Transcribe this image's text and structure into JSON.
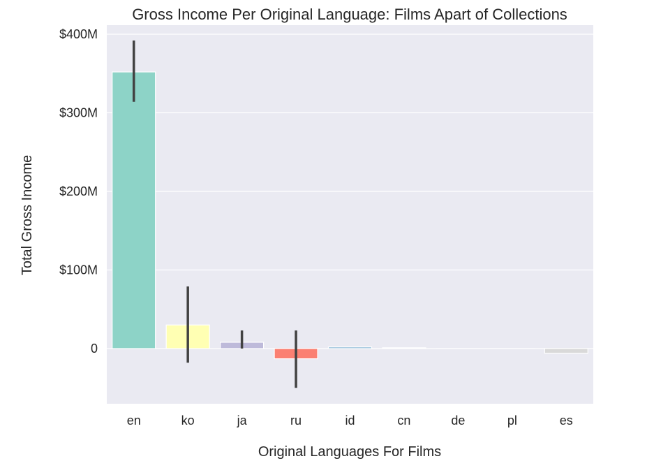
{
  "chart_data": {
    "type": "bar",
    "title": "Gross Income Per Original Language: Films Apart of Collections",
    "xlabel": "Original Languages For Films",
    "ylabel": "Total Gross Income",
    "categories": [
      "en",
      "ko",
      "ja",
      "ru",
      "id",
      "cn",
      "de",
      "pl",
      "es"
    ],
    "values": [
      352000000,
      30000000,
      8000000,
      -13000000,
      2000000,
      1000000,
      0,
      0,
      -6000000
    ],
    "error_low": [
      314000000,
      -18000000,
      0,
      -50000000,
      2000000,
      1000000,
      0,
      0,
      -6000000
    ],
    "error_high": [
      392000000,
      79000000,
      23000000,
      23000000,
      2000000,
      1000000,
      0,
      0,
      -6000000
    ],
    "colors": [
      "#8dd3c7",
      "#ffffb3",
      "#bebada",
      "#fb8072",
      "#80b1d3",
      "#fdb462",
      "#b3de69",
      "#fccde5",
      "#d9d9d9"
    ],
    "ylim": [
      -70000000,
      400000000
    ],
    "yticks": [
      0,
      100000000,
      200000000,
      300000000,
      400000000
    ],
    "ytick_labels": [
      "0",
      "$100M",
      "$200M",
      "$300M",
      "$400M"
    ],
    "grid": true,
    "background": "#eaeaf2"
  }
}
